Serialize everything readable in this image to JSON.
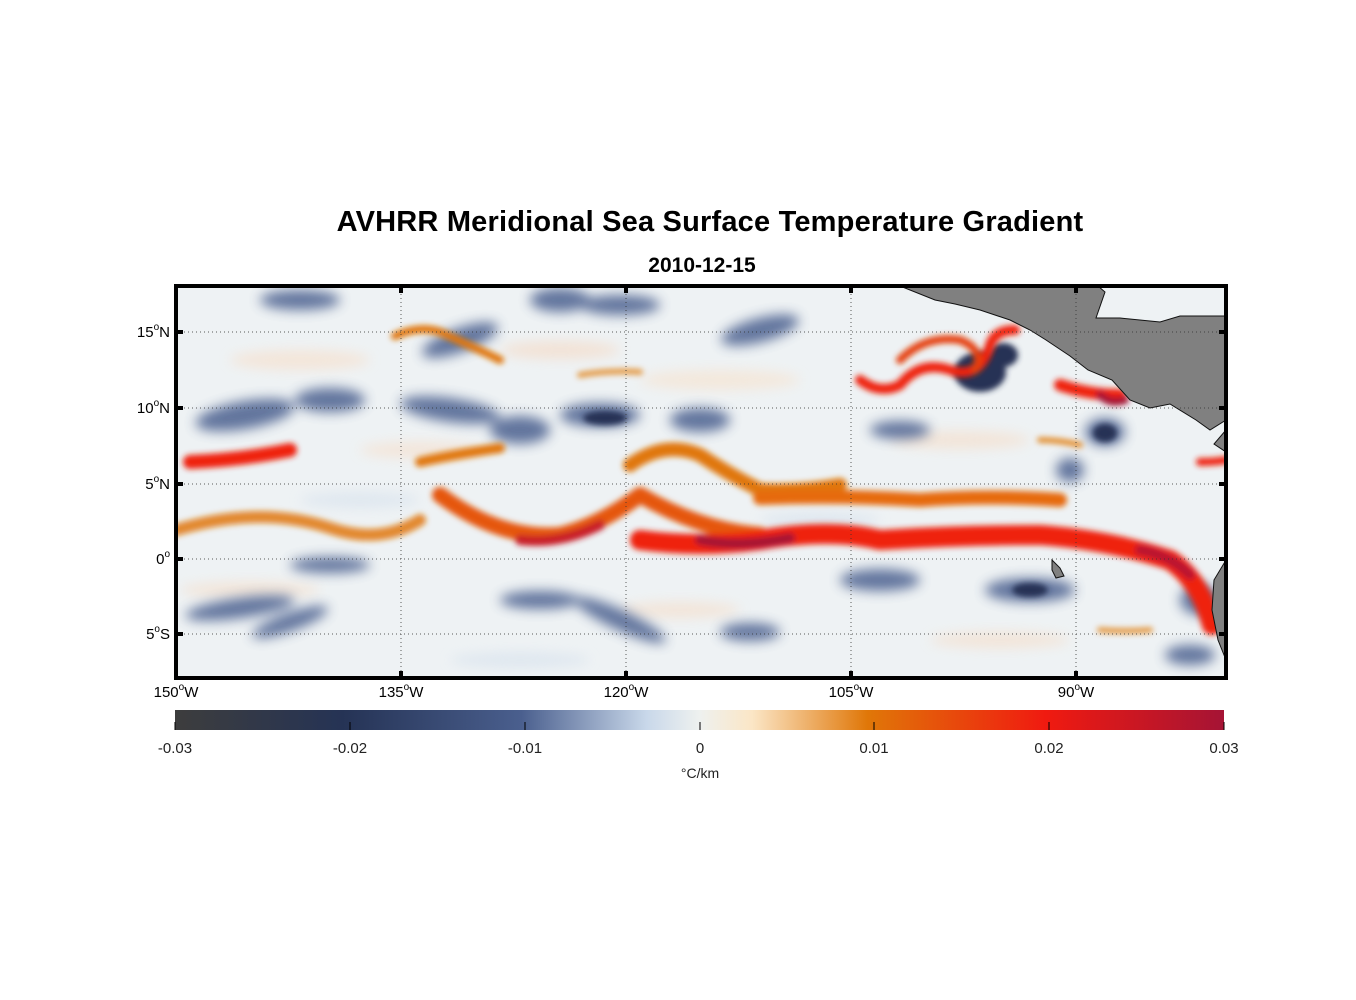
{
  "title": "AVHRR Meridional Sea Surface Temperature Gradient",
  "subtitle": "2010-12-15",
  "map": {
    "projection": "equirectangular",
    "lon_range": [
      "150°W",
      "80°W"
    ],
    "lat_range": [
      "8°S",
      "18°N"
    ],
    "grid": "dotted",
    "land_color": "#808080",
    "lat_ticks": [
      {
        "num": "15",
        "hemi": "N"
      },
      {
        "num": "10",
        "hemi": "N"
      },
      {
        "num": "5",
        "hemi": "N"
      },
      {
        "num": "0",
        "hemi": ""
      },
      {
        "num": "5",
        "hemi": "S"
      }
    ],
    "lon_ticks": [
      {
        "num": "150",
        "hemi": "W"
      },
      {
        "num": "135",
        "hemi": "W"
      },
      {
        "num": "120",
        "hemi": "W"
      },
      {
        "num": "105",
        "hemi": "W"
      },
      {
        "num": "90",
        "hemi": "W"
      }
    ]
  },
  "colorbar": {
    "ticks": [
      "-0.03",
      "-0.02",
      "-0.01",
      "0",
      "0.01",
      "0.02",
      "0.03"
    ],
    "units": "°C/km",
    "colormap": [
      "#3d3d3d",
      "#253355",
      "#4a5f8e",
      "#dfe9f1",
      "#faecd3",
      "#e07708",
      "#f01a10",
      "#a51435"
    ]
  }
}
